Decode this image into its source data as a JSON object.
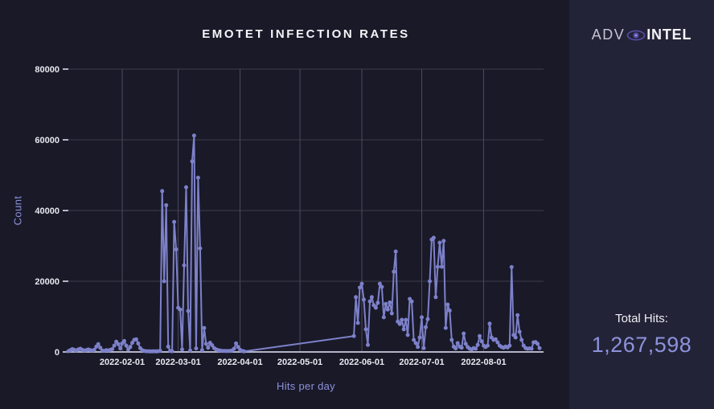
{
  "branding": {
    "logo_prefix": "ADV",
    "logo_suffix": "INTEL"
  },
  "totals": {
    "label": "Total Hits:",
    "value": "1,267,598"
  },
  "colors": {
    "main_bg": "#191928",
    "panel_bg": "#232338",
    "line": "#7d81c9",
    "h_grid": "#3d3d4d",
    "v_grid": "#4b4b5c",
    "axis": "#b4b4c8",
    "tick_label": "#e9e9f1",
    "axis_title": "#8d92db",
    "total_value": "#8d92db"
  },
  "chart_data": {
    "type": "line",
    "title": "EMOTET INFECTION RATES",
    "xlabel": "Hits per day",
    "ylabel": "Count",
    "ylim": [
      0,
      80000
    ],
    "y_ticks": [
      0,
      20000,
      40000,
      60000,
      80000
    ],
    "x_ticks": [
      "2022-02-01",
      "2022-03-01",
      "2022-04-01",
      "2022-05-01",
      "2022-06-01",
      "2022-07-01",
      "2022-08-01"
    ],
    "x_domain": [
      "2022-01-05",
      "2022-08-31"
    ],
    "grid": true,
    "legend": "none",
    "data_gap_note": "no data points between 2022-04-03 and 2022-05-28 (straight connector)",
    "series": [
      {
        "name": "Emotet hits per day",
        "points": [
          [
            "2022-01-05",
            200
          ],
          [
            "2022-01-06",
            500
          ],
          [
            "2022-01-07",
            800
          ],
          [
            "2022-01-08",
            600
          ],
          [
            "2022-01-09",
            400
          ],
          [
            "2022-01-10",
            700
          ],
          [
            "2022-01-11",
            900
          ],
          [
            "2022-01-12",
            600
          ],
          [
            "2022-01-13",
            400
          ],
          [
            "2022-01-14",
            500
          ],
          [
            "2022-01-15",
            700
          ],
          [
            "2022-01-16",
            500
          ],
          [
            "2022-01-17",
            400
          ],
          [
            "2022-01-18",
            600
          ],
          [
            "2022-01-19",
            1500
          ],
          [
            "2022-01-20",
            2200
          ],
          [
            "2022-01-21",
            1200
          ],
          [
            "2022-01-22",
            400
          ],
          [
            "2022-01-23",
            300
          ],
          [
            "2022-01-24",
            500
          ],
          [
            "2022-01-25",
            400
          ],
          [
            "2022-01-26",
            600
          ],
          [
            "2022-01-27",
            800
          ],
          [
            "2022-01-28",
            1800
          ],
          [
            "2022-01-29",
            2900
          ],
          [
            "2022-01-30",
            2200
          ],
          [
            "2022-01-31",
            1000
          ],
          [
            "2022-02-01",
            2400
          ],
          [
            "2022-02-02",
            3100
          ],
          [
            "2022-02-03",
            1800
          ],
          [
            "2022-02-04",
            700
          ],
          [
            "2022-02-05",
            1400
          ],
          [
            "2022-02-06",
            2600
          ],
          [
            "2022-02-07",
            3400
          ],
          [
            "2022-02-08",
            3600
          ],
          [
            "2022-02-09",
            2400
          ],
          [
            "2022-02-10",
            1100
          ],
          [
            "2022-02-11",
            500
          ],
          [
            "2022-02-12",
            300
          ],
          [
            "2022-02-13",
            200
          ],
          [
            "2022-02-14",
            200
          ],
          [
            "2022-02-15",
            150
          ],
          [
            "2022-02-16",
            150
          ],
          [
            "2022-02-17",
            200
          ],
          [
            "2022-02-18",
            150
          ],
          [
            "2022-02-19",
            200
          ],
          [
            "2022-02-20",
            300
          ],
          [
            "2022-02-21",
            45500
          ],
          [
            "2022-02-22",
            20000
          ],
          [
            "2022-02-23",
            41500
          ],
          [
            "2022-02-24",
            1500
          ],
          [
            "2022-02-25",
            300
          ],
          [
            "2022-02-26",
            200
          ],
          [
            "2022-02-27",
            36800
          ],
          [
            "2022-02-28",
            29000
          ],
          [
            "2022-03-01",
            12500
          ],
          [
            "2022-03-02",
            12000
          ],
          [
            "2022-03-03",
            700
          ],
          [
            "2022-03-04",
            24500
          ],
          [
            "2022-03-05",
            46600
          ],
          [
            "2022-03-06",
            11600
          ],
          [
            "2022-03-07",
            400
          ],
          [
            "2022-03-08",
            53900
          ],
          [
            "2022-03-09",
            61200
          ],
          [
            "2022-03-10",
            1000
          ],
          [
            "2022-03-11",
            49300
          ],
          [
            "2022-03-12",
            29300
          ],
          [
            "2022-03-13",
            500
          ],
          [
            "2022-03-14",
            6800
          ],
          [
            "2022-03-15",
            2300
          ],
          [
            "2022-03-16",
            1200
          ],
          [
            "2022-03-17",
            2600
          ],
          [
            "2022-03-18",
            1900
          ],
          [
            "2022-03-19",
            1100
          ],
          [
            "2022-03-20",
            700
          ],
          [
            "2022-03-21",
            500
          ],
          [
            "2022-03-22",
            400
          ],
          [
            "2022-03-23",
            300
          ],
          [
            "2022-03-24",
            300
          ],
          [
            "2022-03-25",
            250
          ],
          [
            "2022-03-26",
            250
          ],
          [
            "2022-03-27",
            300
          ],
          [
            "2022-03-28",
            400
          ],
          [
            "2022-03-29",
            900
          ],
          [
            "2022-03-30",
            2400
          ],
          [
            "2022-03-31",
            1400
          ],
          [
            "2022-04-01",
            600
          ],
          [
            "2022-04-02",
            300
          ],
          [
            "2022-04-03",
            150
          ],
          [
            "2022-05-28",
            4500
          ],
          [
            "2022-05-29",
            15500
          ],
          [
            "2022-05-30",
            8200
          ],
          [
            "2022-05-31",
            18200
          ],
          [
            "2022-06-01",
            19300
          ],
          [
            "2022-06-02",
            14800
          ],
          [
            "2022-06-03",
            6400
          ],
          [
            "2022-06-04",
            2000
          ],
          [
            "2022-06-05",
            14300
          ],
          [
            "2022-06-06",
            15500
          ],
          [
            "2022-06-07",
            13200
          ],
          [
            "2022-06-08",
            12500
          ],
          [
            "2022-06-09",
            13900
          ],
          [
            "2022-06-10",
            19300
          ],
          [
            "2022-06-11",
            18400
          ],
          [
            "2022-06-12",
            9800
          ],
          [
            "2022-06-13",
            13600
          ],
          [
            "2022-06-14",
            12000
          ],
          [
            "2022-06-15",
            14000
          ],
          [
            "2022-06-16",
            10900
          ],
          [
            "2022-06-17",
            22700
          ],
          [
            "2022-06-18",
            28400
          ],
          [
            "2022-06-19",
            8600
          ],
          [
            "2022-06-20",
            7900
          ],
          [
            "2022-06-21",
            9100
          ],
          [
            "2022-06-22",
            6400
          ],
          [
            "2022-06-23",
            9100
          ],
          [
            "2022-06-24",
            4800
          ],
          [
            "2022-06-25",
            15000
          ],
          [
            "2022-06-26",
            14300
          ],
          [
            "2022-06-27",
            3400
          ],
          [
            "2022-06-28",
            2500
          ],
          [
            "2022-06-29",
            1400
          ],
          [
            "2022-06-30",
            4100
          ],
          [
            "2022-07-01",
            9800
          ],
          [
            "2022-07-02",
            1100
          ],
          [
            "2022-07-03",
            7000
          ],
          [
            "2022-07-04",
            9300
          ],
          [
            "2022-07-05",
            20000
          ],
          [
            "2022-07-06",
            31800
          ],
          [
            "2022-07-07",
            32300
          ],
          [
            "2022-07-08",
            15500
          ],
          [
            "2022-07-09",
            24100
          ],
          [
            "2022-07-10",
            30900
          ],
          [
            "2022-07-11",
            24100
          ],
          [
            "2022-07-12",
            31400
          ],
          [
            "2022-07-13",
            6800
          ],
          [
            "2022-07-14",
            13400
          ],
          [
            "2022-07-15",
            11700
          ],
          [
            "2022-07-16",
            3400
          ],
          [
            "2022-07-17",
            1500
          ],
          [
            "2022-07-18",
            1000
          ],
          [
            "2022-07-19",
            2500
          ],
          [
            "2022-07-20",
            1500
          ],
          [
            "2022-07-21",
            1200
          ],
          [
            "2022-07-22",
            5200
          ],
          [
            "2022-07-23",
            2300
          ],
          [
            "2022-07-24",
            1400
          ],
          [
            "2022-07-25",
            900
          ],
          [
            "2022-07-26",
            700
          ],
          [
            "2022-07-27",
            1100
          ],
          [
            "2022-07-28",
            900
          ],
          [
            "2022-07-29",
            2000
          ],
          [
            "2022-07-30",
            4500
          ],
          [
            "2022-07-31",
            3000
          ],
          [
            "2022-08-01",
            1800
          ],
          [
            "2022-08-02",
            1400
          ],
          [
            "2022-08-03",
            1800
          ],
          [
            "2022-08-04",
            8000
          ],
          [
            "2022-08-05",
            4100
          ],
          [
            "2022-08-06",
            3400
          ],
          [
            "2022-08-07",
            3600
          ],
          [
            "2022-08-08",
            2700
          ],
          [
            "2022-08-09",
            1800
          ],
          [
            "2022-08-10",
            1400
          ],
          [
            "2022-08-11",
            1200
          ],
          [
            "2022-08-12",
            1500
          ],
          [
            "2022-08-13",
            1300
          ],
          [
            "2022-08-14",
            1800
          ],
          [
            "2022-08-15",
            24000
          ],
          [
            "2022-08-16",
            4800
          ],
          [
            "2022-08-17",
            4100
          ],
          [
            "2022-08-18",
            10400
          ],
          [
            "2022-08-19",
            5700
          ],
          [
            "2022-08-20",
            3400
          ],
          [
            "2022-08-21",
            1800
          ],
          [
            "2022-08-22",
            1100
          ],
          [
            "2022-08-23",
            900
          ],
          [
            "2022-08-24",
            1000
          ],
          [
            "2022-08-25",
            900
          ],
          [
            "2022-08-26",
            2700
          ],
          [
            "2022-08-27",
            2800
          ],
          [
            "2022-08-28",
            2300
          ],
          [
            "2022-08-29",
            1100
          ]
        ]
      }
    ]
  }
}
